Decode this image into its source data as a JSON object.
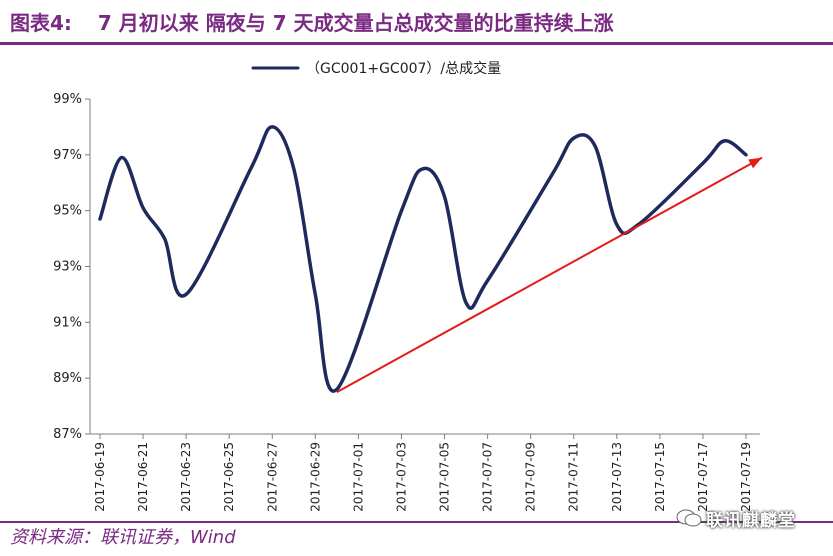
{
  "title": {
    "number": "图表4:",
    "text": "7 月初以来  隔夜与 7 天成交量占总成交量的比重持续上涨"
  },
  "source": "资料来源：联讯证券，Wind",
  "watermark": "联讯麒麟堂",
  "colors": {
    "accent": "#7a2a83",
    "series": "#1f2a5c",
    "trend": "#e31b1b"
  },
  "chart_data": {
    "type": "line",
    "title": "",
    "xlabel": "",
    "ylabel": "",
    "ylim": [
      0.87,
      0.99
    ],
    "y_ticks": [
      0.87,
      0.89,
      0.91,
      0.93,
      0.95,
      0.97,
      0.99
    ],
    "y_tick_labels": [
      "87%",
      "89%",
      "91%",
      "93%",
      "95%",
      "97%",
      "99%"
    ],
    "x_tick_labels": [
      "2017-06-19",
      "2017-06-21",
      "2017-06-23",
      "2017-06-25",
      "2017-06-27",
      "2017-06-29",
      "2017-07-01",
      "2017-07-03",
      "2017-07-05",
      "2017-07-07",
      "2017-07-09",
      "2017-07-11",
      "2017-07-13",
      "2017-07-15",
      "2017-07-17",
      "2017-07-19"
    ],
    "legend": "top-center",
    "series": [
      {
        "name": "（GC001+GC007）/总成交量",
        "x": [
          "2017-06-19",
          "2017-06-20",
          "2017-06-21",
          "2017-06-22",
          "2017-06-23",
          "2017-06-26",
          "2017-06-27",
          "2017-06-28",
          "2017-06-29",
          "2017-06-30",
          "2017-07-03",
          "2017-07-04",
          "2017-07-05",
          "2017-07-06",
          "2017-07-07",
          "2017-07-10",
          "2017-07-11",
          "2017-07-12",
          "2017-07-13",
          "2017-07-14",
          "2017-07-17",
          "2017-07-18",
          "2017-07-19"
        ],
        "values": [
          0.947,
          0.969,
          0.951,
          0.94,
          0.92,
          0.965,
          0.98,
          0.965,
          0.92,
          0.886,
          0.95,
          0.965,
          0.955,
          0.917,
          0.925,
          0.963,
          0.976,
          0.973,
          0.945,
          0.945,
          0.967,
          0.975,
          0.97
        ]
      }
    ],
    "annotations": [
      {
        "type": "trend-arrow",
        "from": [
          "2017-06-30",
          0.885
        ],
        "to": [
          "2017-07-19",
          0.969
        ]
      }
    ]
  }
}
